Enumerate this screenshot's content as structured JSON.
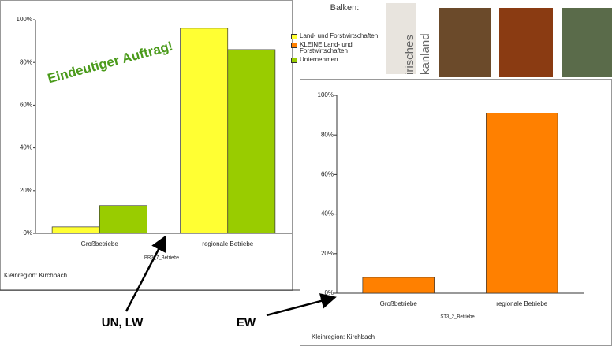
{
  "header": {
    "photo_caption_1": "irisches",
    "photo_caption_2": "kanland"
  },
  "annotations": {
    "headline": "Eindeutiger Auftrag!",
    "arrow_left": "UN, LW",
    "arrow_right": "EW"
  },
  "chart_data": [
    {
      "type": "bar",
      "legend_title": "Balken:",
      "x_label": "BR3_7_Betriebe",
      "footnote": "Kleinregion: Kirchbach",
      "categories": [
        "Großbetriebe",
        "regionale Betriebe"
      ],
      "series": [
        {
          "name": "Land- und Forstwirtschaften",
          "color": "#ffff33",
          "values": [
            3,
            96
          ]
        },
        {
          "name": "Unternehmen",
          "color": "#99cc00",
          "values": [
            13,
            86
          ]
        }
      ],
      "ylim": [
        0,
        100
      ],
      "yticks": [
        {
          "value": 0,
          "label": "0%"
        },
        {
          "value": 20,
          "label": "20%"
        },
        {
          "value": 40,
          "label": "40%"
        },
        {
          "value": 60,
          "label": "60%"
        },
        {
          "value": 80,
          "label": "80%"
        },
        {
          "value": 100,
          "label": "100%"
        }
      ],
      "grid": false
    },
    {
      "type": "bar",
      "x_label": "ST3_2_Betriebe",
      "footnote": "Kleinregion: Kirchbach",
      "categories": [
        "Großbetriebe",
        "regionale Betriebe"
      ],
      "series": [
        {
          "name": "KLEINE Land- und Forstwirtschaften",
          "color": "#ff8000",
          "values": [
            8,
            91
          ]
        }
      ],
      "ylim": [
        0,
        100
      ],
      "yticks": [
        {
          "value": 0,
          "label": "0%"
        },
        {
          "value": 20,
          "label": "20%"
        },
        {
          "value": 40,
          "label": "40%"
        },
        {
          "value": 60,
          "label": "60%"
        },
        {
          "value": 80,
          "label": "80%"
        },
        {
          "value": 100,
          "label": "100%"
        }
      ],
      "grid": false
    }
  ]
}
